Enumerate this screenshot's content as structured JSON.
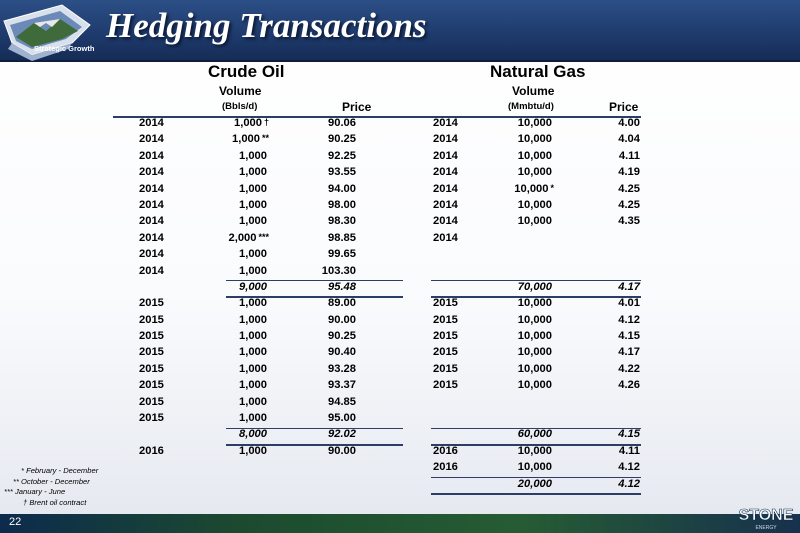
{
  "title": "Hedging Transactions",
  "tagline": "Strategic Growth",
  "page_number": "22",
  "company_logo": "STONE",
  "crude_oil": {
    "heading": "Crude Oil",
    "volume_label": "Volume",
    "volume_unit": "(Bbls/d)",
    "price_label": "Price"
  },
  "natural_gas": {
    "heading": "Natural Gas",
    "volume_label": "Volume",
    "volume_unit": "(Mmbtu/d)",
    "price_label": "Price"
  },
  "rows": [
    {
      "oil_year": "2014",
      "oil_volume": "1,000",
      "oil_mark": "†",
      "oil_price": "90.06",
      "gas_year": "2014",
      "gas_volume": "10,000",
      "gas_mark": "",
      "gas_price": "4.00"
    },
    {
      "oil_year": "2014",
      "oil_volume": "1,000",
      "oil_mark": "**",
      "oil_price": "90.25",
      "gas_year": "2014",
      "gas_volume": "10,000",
      "gas_mark": "",
      "gas_price": "4.04"
    },
    {
      "oil_year": "2014",
      "oil_volume": "1,000",
      "oil_mark": "",
      "oil_price": "92.25",
      "gas_year": "2014",
      "gas_volume": "10,000",
      "gas_mark": "",
      "gas_price": "4.11"
    },
    {
      "oil_year": "2014",
      "oil_volume": "1,000",
      "oil_mark": "",
      "oil_price": "93.55",
      "gas_year": "2014",
      "gas_volume": "10,000",
      "gas_mark": "",
      "gas_price": "4.19"
    },
    {
      "oil_year": "2014",
      "oil_volume": "1,000",
      "oil_mark": "",
      "oil_price": "94.00",
      "gas_year": "2014",
      "gas_volume": "10,000",
      "gas_mark": "*",
      "gas_price": "4.25"
    },
    {
      "oil_year": "2014",
      "oil_volume": "1,000",
      "oil_mark": "",
      "oil_price": "98.00",
      "gas_year": "2014",
      "gas_volume": "10,000",
      "gas_mark": "",
      "gas_price": "4.25"
    },
    {
      "oil_year": "2014",
      "oil_volume": "1,000",
      "oil_mark": "",
      "oil_price": "98.30",
      "gas_year": "2014",
      "gas_volume": "10,000",
      "gas_mark": "",
      "gas_price": "4.35"
    },
    {
      "oil_year": "2014",
      "oil_volume": "2,000",
      "oil_mark": "***",
      "oil_price": "98.85",
      "gas_year": "2014",
      "gas_volume": "",
      "gas_mark": "",
      "gas_price": ""
    },
    {
      "oil_year": "2014",
      "oil_volume": "1,000",
      "oil_mark": "",
      "oil_price": "99.65",
      "gas_year": "",
      "gas_volume": "",
      "gas_mark": "",
      "gas_price": ""
    },
    {
      "oil_year": "2014",
      "oil_volume": "1,000",
      "oil_mark": "",
      "oil_price": "103.30",
      "gas_year": "",
      "gas_volume": "",
      "gas_mark": "",
      "gas_price": ""
    },
    {
      "subtotal": true,
      "oil_year": "",
      "oil_volume": "9,000",
      "oil_mark": "",
      "oil_price": "95.48",
      "gas_year": "",
      "gas_volume": "70,000",
      "gas_mark": "",
      "gas_price": "4.17"
    },
    {
      "oil_year": "2015",
      "oil_volume": "1,000",
      "oil_mark": "",
      "oil_price": "89.00",
      "gas_year": "2015",
      "gas_volume": "10,000",
      "gas_mark": "",
      "gas_price": "4.01"
    },
    {
      "oil_year": "2015",
      "oil_volume": "1,000",
      "oil_mark": "",
      "oil_price": "90.00",
      "gas_year": "2015",
      "gas_volume": "10,000",
      "gas_mark": "",
      "gas_price": "4.12"
    },
    {
      "oil_year": "2015",
      "oil_volume": "1,000",
      "oil_mark": "",
      "oil_price": "90.25",
      "gas_year": "2015",
      "gas_volume": "10,000",
      "gas_mark": "",
      "gas_price": "4.15"
    },
    {
      "oil_year": "2015",
      "oil_volume": "1,000",
      "oil_mark": "",
      "oil_price": "90.40",
      "gas_year": "2015",
      "gas_volume": "10,000",
      "gas_mark": "",
      "gas_price": "4.17"
    },
    {
      "oil_year": "2015",
      "oil_volume": "1,000",
      "oil_mark": "",
      "oil_price": "93.28",
      "gas_year": "2015",
      "gas_volume": "10,000",
      "gas_mark": "",
      "gas_price": "4.22"
    },
    {
      "oil_year": "2015",
      "oil_volume": "1,000",
      "oil_mark": "",
      "oil_price": "93.37",
      "gas_year": "2015",
      "gas_volume": "10,000",
      "gas_mark": "",
      "gas_price": "4.26"
    },
    {
      "oil_year": "2015",
      "oil_volume": "1,000",
      "oil_mark": "",
      "oil_price": "94.85",
      "gas_year": "",
      "gas_volume": "",
      "gas_mark": "",
      "gas_price": ""
    },
    {
      "oil_year": "2015",
      "oil_volume": "1,000",
      "oil_mark": "",
      "oil_price": "95.00",
      "gas_year": "",
      "gas_volume": "",
      "gas_mark": "",
      "gas_price": ""
    },
    {
      "subtotal": true,
      "oil_year": "",
      "oil_volume": "8,000",
      "oil_mark": "",
      "oil_price": "92.02",
      "gas_year": "",
      "gas_volume": "60,000",
      "gas_mark": "",
      "gas_price": "4.15"
    },
    {
      "oil_year": "2016",
      "oil_volume": "1,000",
      "oil_mark": "",
      "oil_price": "90.00",
      "gas_year": "2016",
      "gas_volume": "10,000",
      "gas_mark": "",
      "gas_price": "4.11"
    },
    {
      "oil_year": "",
      "oil_volume": "",
      "oil_mark": "",
      "oil_price": "",
      "gas_year": "2016",
      "gas_volume": "10,000",
      "gas_mark": "",
      "gas_price": "4.12"
    },
    {
      "subtotal": true,
      "oil_year": "",
      "oil_volume": "",
      "oil_mark": "",
      "oil_price": "",
      "gas_year": "",
      "gas_volume": "20,000",
      "gas_mark": "",
      "gas_price": "4.12"
    }
  ],
  "footnotes": [
    "* February - December",
    "** October - December",
    "*** January - June",
    "† Brent oil contract"
  ],
  "colors": {
    "header_blue": "#1e3a6c",
    "rule_navy": "#2b3e67",
    "footer_green": "#265c33"
  }
}
